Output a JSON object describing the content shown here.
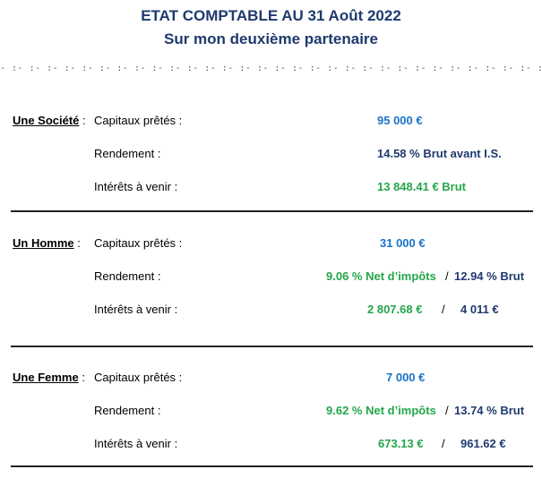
{
  "header": {
    "title_line1": "ETAT COMPTABLE AU 31 Août 2022",
    "title_line2": "Sur mon deuxième partenaire",
    "separator": "- :- :- :- :- :- :- :- :- :- :- :- :- :- :- :- :- :- :- :- :- :- :- :- :- :- :- :- :- :- :- :-"
  },
  "labels": {
    "capitaux": "Capitaux prêtés :",
    "rendement": "Rendement :",
    "interets": "Intérêts à venir :",
    "colon": " :",
    "slash": "/"
  },
  "sections": [
    {
      "entity": "Une Société",
      "capitaux": "95 000 €",
      "rendement_main": "14.58 % Brut avant I.S.",
      "interets_main": "13 848.41 € Brut"
    },
    {
      "entity": "Un Homme",
      "capitaux": "31 000 €",
      "rendement_net": "9.06 % Net d’impôts",
      "rendement_brut": "12.94 % Brut",
      "interets_net": "2 807.68 €",
      "interets_brut": "4 011 €"
    },
    {
      "entity": "Une Femme",
      "capitaux": "7 000 €",
      "rendement_net": "9.62 % Net d’impôts",
      "rendement_brut": "13.74 % Brut",
      "interets_net": "673.13 €",
      "interets_brut": "961.62 €"
    }
  ],
  "colors": {
    "title": "#1f3a6e",
    "capital": "#1a73c8",
    "net": "#22a64a",
    "brut": "#1f3a6e"
  }
}
